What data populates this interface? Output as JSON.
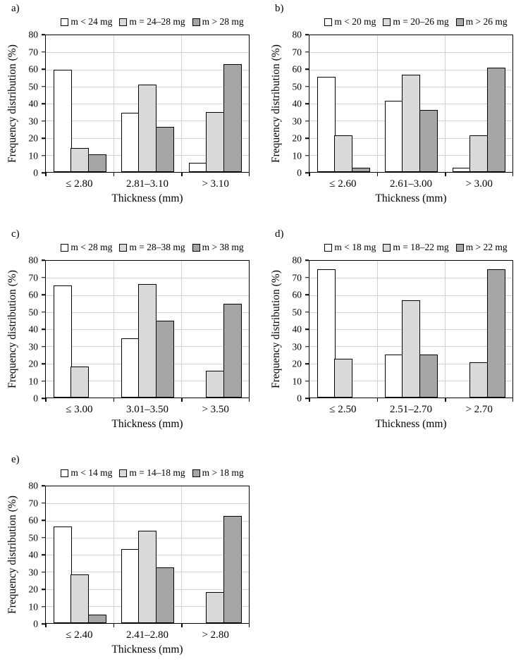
{
  "style": {
    "series_colors": [
      "#ffffff",
      "#d9d9d9",
      "#a6a6a6"
    ],
    "bar_border_color": "#000000",
    "gridline_color": "#d2d2d2",
    "axis_color": "#000000",
    "grid_on": true,
    "legend_position": "top-center"
  },
  "chart_data": [
    {
      "type": "bar",
      "label": "a)",
      "title": "",
      "legend": [
        "m < 24 mg",
        "m = 24–28 mg",
        "m > 28 mg"
      ],
      "categories": [
        "≤ 2.80",
        "2.81–3.10",
        "> 3.10"
      ],
      "series": [
        {
          "name": "m < 24 mg",
          "values": [
            60,
            34.5,
            5.5
          ]
        },
        {
          "name": "m = 24–28 mg",
          "values": [
            14,
            51,
            35
          ]
        },
        {
          "name": "m > 28 mg",
          "values": [
            10.5,
            26.5,
            63
          ]
        }
      ],
      "xlabel": "Thickness (mm)",
      "ylabel": "Frequency distribution (%)",
      "ylim": [
        0,
        80
      ],
      "ytick_step": 10
    },
    {
      "type": "bar",
      "label": "b)",
      "title": "",
      "legend": [
        "m < 20 mg",
        "m = 20–26 mg",
        "m > 26 mg"
      ],
      "categories": [
        "≤ 2.60",
        "2.61–3.00",
        "> 3.00"
      ],
      "series": [
        {
          "name": "m < 20 mg",
          "values": [
            55.5,
            41.5,
            2.5
          ]
        },
        {
          "name": "m = 20–26 mg",
          "values": [
            21.5,
            57,
            21.5
          ]
        },
        {
          "name": "m > 26 mg",
          "values": [
            2.5,
            36.5,
            61
          ]
        }
      ],
      "xlabel": "Thickness (mm)",
      "ylabel": "Frequency distribution (%)",
      "ylim": [
        0,
        80
      ],
      "ytick_step": 10
    },
    {
      "type": "bar",
      "label": "c)",
      "title": "",
      "legend": [
        "m < 28 mg",
        "m = 28–38 mg",
        "m > 38 mg"
      ],
      "categories": [
        "≤ 3.00",
        "3.01–3.50",
        "> 3.50"
      ],
      "series": [
        {
          "name": "m < 28 mg",
          "values": [
            65.5,
            34.5,
            0
          ]
        },
        {
          "name": "m = 28–38 mg",
          "values": [
            18,
            66.5,
            15.5
          ]
        },
        {
          "name": "m > 38 mg",
          "values": [
            0,
            45,
            55
          ]
        }
      ],
      "xlabel": "Thickness (mm)",
      "ylabel": "Frequency distribution (%)",
      "ylim": [
        0,
        80
      ],
      "ytick_step": 10
    },
    {
      "type": "bar",
      "label": "d)",
      "title": "",
      "legend": [
        "m < 18 mg",
        "m = 18–22 mg",
        "m > 22 mg"
      ],
      "categories": [
        "≤ 2.50",
        "2.51–2.70",
        "> 2.70"
      ],
      "series": [
        {
          "name": "m < 18 mg",
          "values": [
            75,
            25,
            0
          ]
        },
        {
          "name": "m = 18–22 mg",
          "values": [
            22.5,
            57,
            20.5
          ]
        },
        {
          "name": "m > 22 mg",
          "values": [
            0,
            25,
            75
          ]
        }
      ],
      "xlabel": "Thickness (mm)",
      "ylabel": "Frequency distribution (%)",
      "ylim": [
        0,
        80
      ],
      "ytick_step": 10
    },
    {
      "type": "bar",
      "label": "e)",
      "title": "",
      "legend": [
        "m < 14 mg",
        "m = 14–18 mg",
        "m > 18 mg"
      ],
      "categories": [
        "≤ 2.40",
        "2.41–2.80",
        "> 2.80"
      ],
      "series": [
        {
          "name": "m < 14 mg",
          "values": [
            56.5,
            43.5,
            0
          ]
        },
        {
          "name": "m = 14–18 mg",
          "values": [
            28.5,
            54,
            18
          ]
        },
        {
          "name": "m > 18 mg",
          "values": [
            5,
            32.5,
            62.5
          ]
        }
      ],
      "xlabel": "Thickness (mm)",
      "ylabel": "Frequency distribution (%)",
      "ylim": [
        0,
        80
      ],
      "ytick_step": 10
    }
  ]
}
